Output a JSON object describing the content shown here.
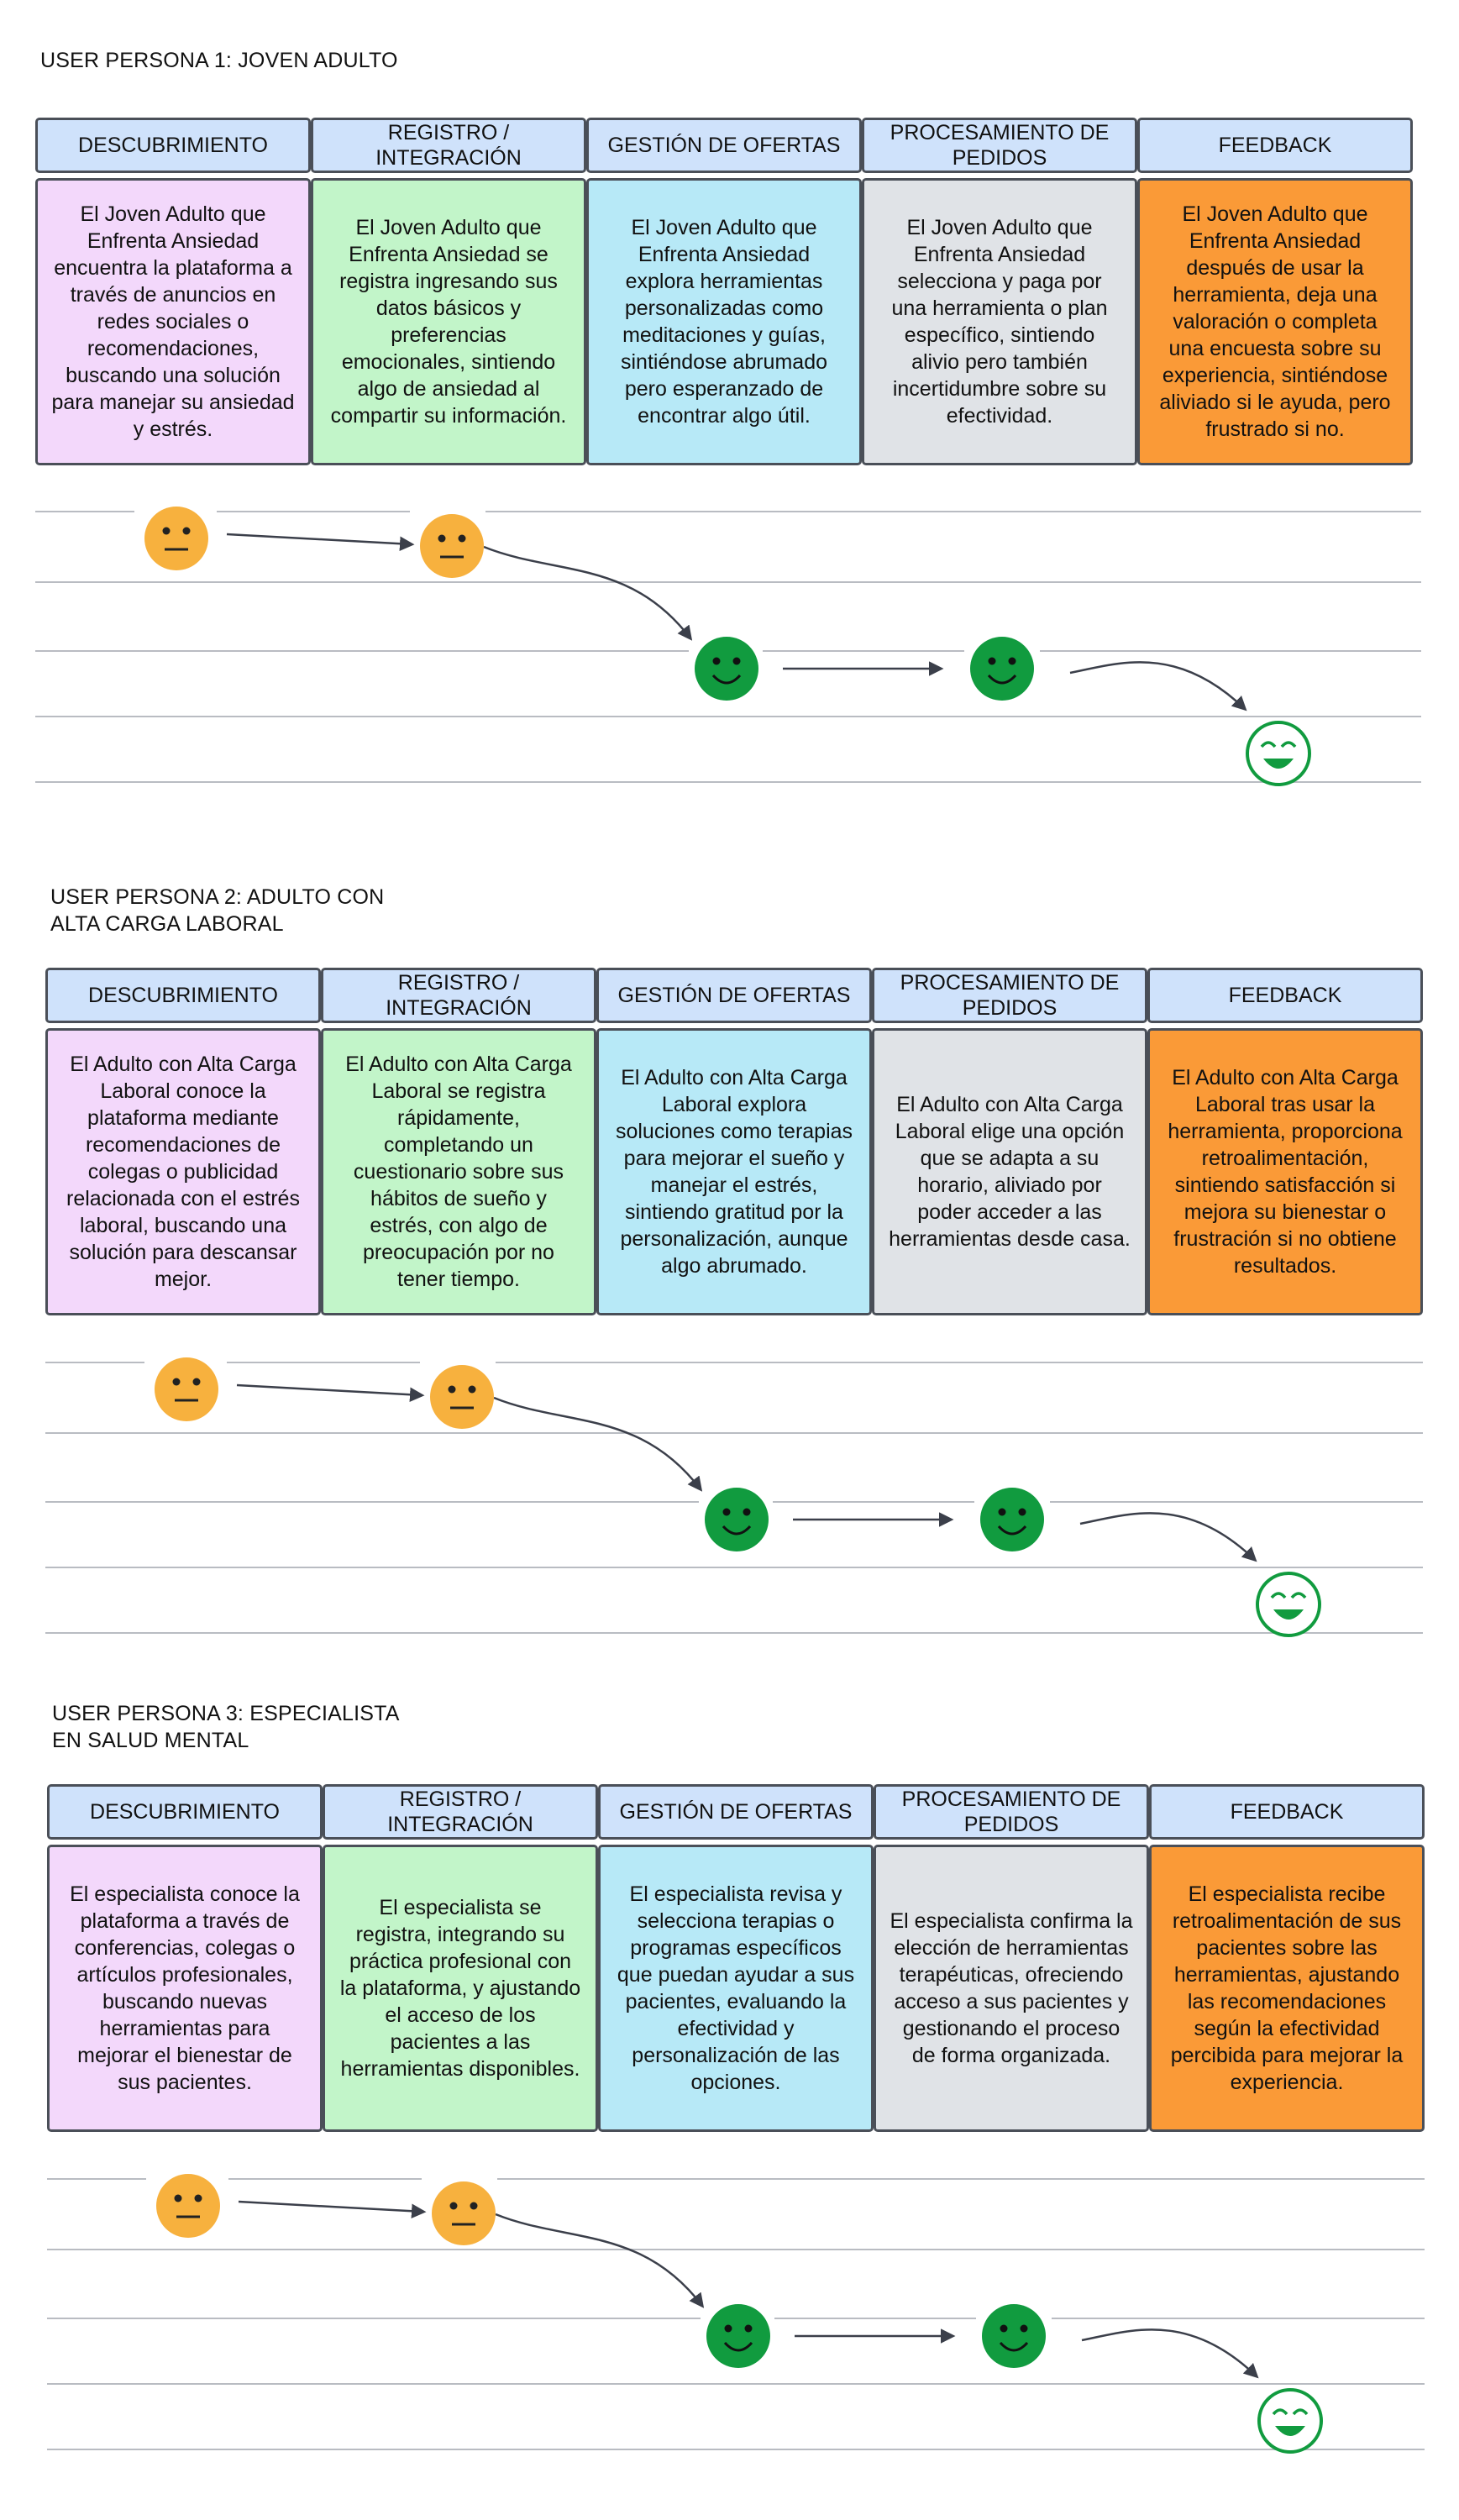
{
  "stages": [
    "DESCUBRIMIENTO",
    "REGISTRO /\nINTEGRACIÓN",
    "GESTIÓN DE OFERTAS",
    "PROCESAMIENTO DE\nPEDIDOS",
    "FEEDBACK"
  ],
  "colors": {
    "header": "#cfe2fb",
    "stage_cards": [
      "#f3d8fb",
      "#c2f5c9",
      "#b7e9f7",
      "#e0e3e7",
      "#fa9a37"
    ],
    "neutral_face": "#f7b13e",
    "happy_face": "#119b3f"
  },
  "emotions": [
    "neutral",
    "neutral",
    "happy",
    "happy",
    "very-happy"
  ],
  "personas": [
    {
      "title": "USER PERSONA 1: JOVEN ADULTO",
      "descriptions": [
        "El Joven Adulto que Enfrenta Ansiedad encuentra la plataforma a través de anuncios en redes sociales o recomendaciones, buscando una solución para manejar su ansiedad y estrés.",
        "El Joven Adulto que Enfrenta Ansiedad se registra ingresando sus datos básicos y preferencias emocionales, sintiendo algo de ansiedad al compartir su información.",
        "El Joven Adulto que Enfrenta Ansiedad explora herramientas personalizadas como meditaciones y guías, sintiéndose abrumado pero esperanzado de encontrar algo útil.",
        "El Joven Adulto que Enfrenta Ansiedad selecciona y paga por una herramienta o plan específico, sintiendo alivio pero también incertidumbre sobre su efectividad.",
        "El Joven Adulto que Enfrenta Ansiedad después de usar la herramienta, deja una valoración o completa una encuesta sobre su experiencia, sintiéndose aliviado si le ayuda, pero frustrado si no."
      ]
    },
    {
      "title": "USER PERSONA 2: ADULTO CON\nALTA CARGA LABORAL",
      "descriptions": [
        "El Adulto con Alta Carga Laboral conoce la plataforma mediante recomendaciones de colegas o publicidad relacionada con el estrés laboral, buscando una solución para descansar mejor.",
        "El Adulto con Alta Carga Laboral se registra rápidamente, completando un cuestionario sobre sus hábitos de sueño y estrés, con algo de preocupación por no tener tiempo.",
        "El Adulto con Alta Carga Laboral explora soluciones como terapias para mejorar el sueño y manejar el estrés, sintiendo gratitud por la personalización, aunque algo abrumado.",
        "El Adulto con Alta Carga Laboral elige una opción que se adapta a su horario, aliviado por poder acceder a las herramientas desde casa.",
        "El Adulto con Alta Carga Laboral tras usar la herramienta, proporciona retroalimentación, sintiendo satisfacción si mejora su bienestar o frustración si no obtiene resultados."
      ]
    },
    {
      "title": "USER PERSONA 3: ESPECIALISTA\nEN SALUD MENTAL",
      "descriptions": [
        "El especialista conoce la plataforma a través de conferencias, colegas o artículos profesionales, buscando nuevas herramientas para mejorar el bienestar de sus pacientes.",
        "El especialista se registra, integrando su práctica profesional con la plataforma, y ajustando el acceso de los pacientes a las herramientas disponibles.",
        "El especialista revisa y selecciona terapias o programas específicos que puedan ayudar a sus pacientes, evaluando la efectividad y personalización de las opciones.",
        "El especialista confirma la elección de herramientas terapéuticas, ofreciendo acceso a sus pacientes y gestionando el proceso de forma organizada.",
        "El especialista recibe retroalimentación de sus pacientes sobre las herramientas, ajustando las recomendaciones según la efectividad percibida para mejorar la experiencia."
      ]
    }
  ]
}
